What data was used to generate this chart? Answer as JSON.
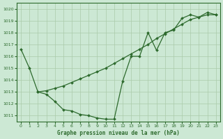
{
  "title": "Graphe pression niveau de la mer (hPa)",
  "bg_color": "#cce8d4",
  "line_color": "#2d6a2d",
  "grid_color": "#aacaaa",
  "xlim": [
    -0.5,
    23.5
  ],
  "ylim": [
    1010.5,
    1020.5
  ],
  "yticks": [
    1011,
    1012,
    1013,
    1014,
    1015,
    1016,
    1017,
    1018,
    1019,
    1020
  ],
  "xticks": [
    0,
    1,
    2,
    3,
    4,
    5,
    6,
    7,
    8,
    9,
    10,
    11,
    12,
    13,
    14,
    15,
    16,
    17,
    18,
    19,
    20,
    21,
    22,
    23
  ],
  "series_jagged_x": [
    0,
    1,
    2,
    3,
    4,
    5,
    6,
    7,
    8,
    9,
    10,
    11,
    12,
    13,
    14,
    15,
    16,
    17,
    18,
    19,
    20,
    21,
    22,
    23
  ],
  "series_jagged_y": [
    1016.6,
    1015.0,
    1013.0,
    1012.8,
    1012.2,
    1011.5,
    1011.4,
    1011.1,
    1011.0,
    1010.8,
    1010.7,
    1010.7,
    1013.9,
    1016.0,
    1016.0,
    1018.0,
    1016.5,
    1018.0,
    1018.2,
    1019.2,
    1019.5,
    1019.3,
    1019.7,
    1019.5
  ],
  "series_smooth_x": [
    2,
    3,
    4,
    5,
    6,
    7,
    8,
    9,
    10,
    11,
    12,
    13,
    14,
    15,
    16,
    17,
    18,
    19,
    20,
    21,
    22,
    23
  ],
  "series_smooth_y": [
    1013.0,
    1013.1,
    1013.3,
    1013.5,
    1013.8,
    1014.1,
    1014.4,
    1014.7,
    1015.0,
    1015.4,
    1015.8,
    1016.2,
    1016.6,
    1017.0,
    1017.5,
    1017.9,
    1018.3,
    1018.7,
    1019.1,
    1019.3,
    1019.5,
    1019.5
  ]
}
